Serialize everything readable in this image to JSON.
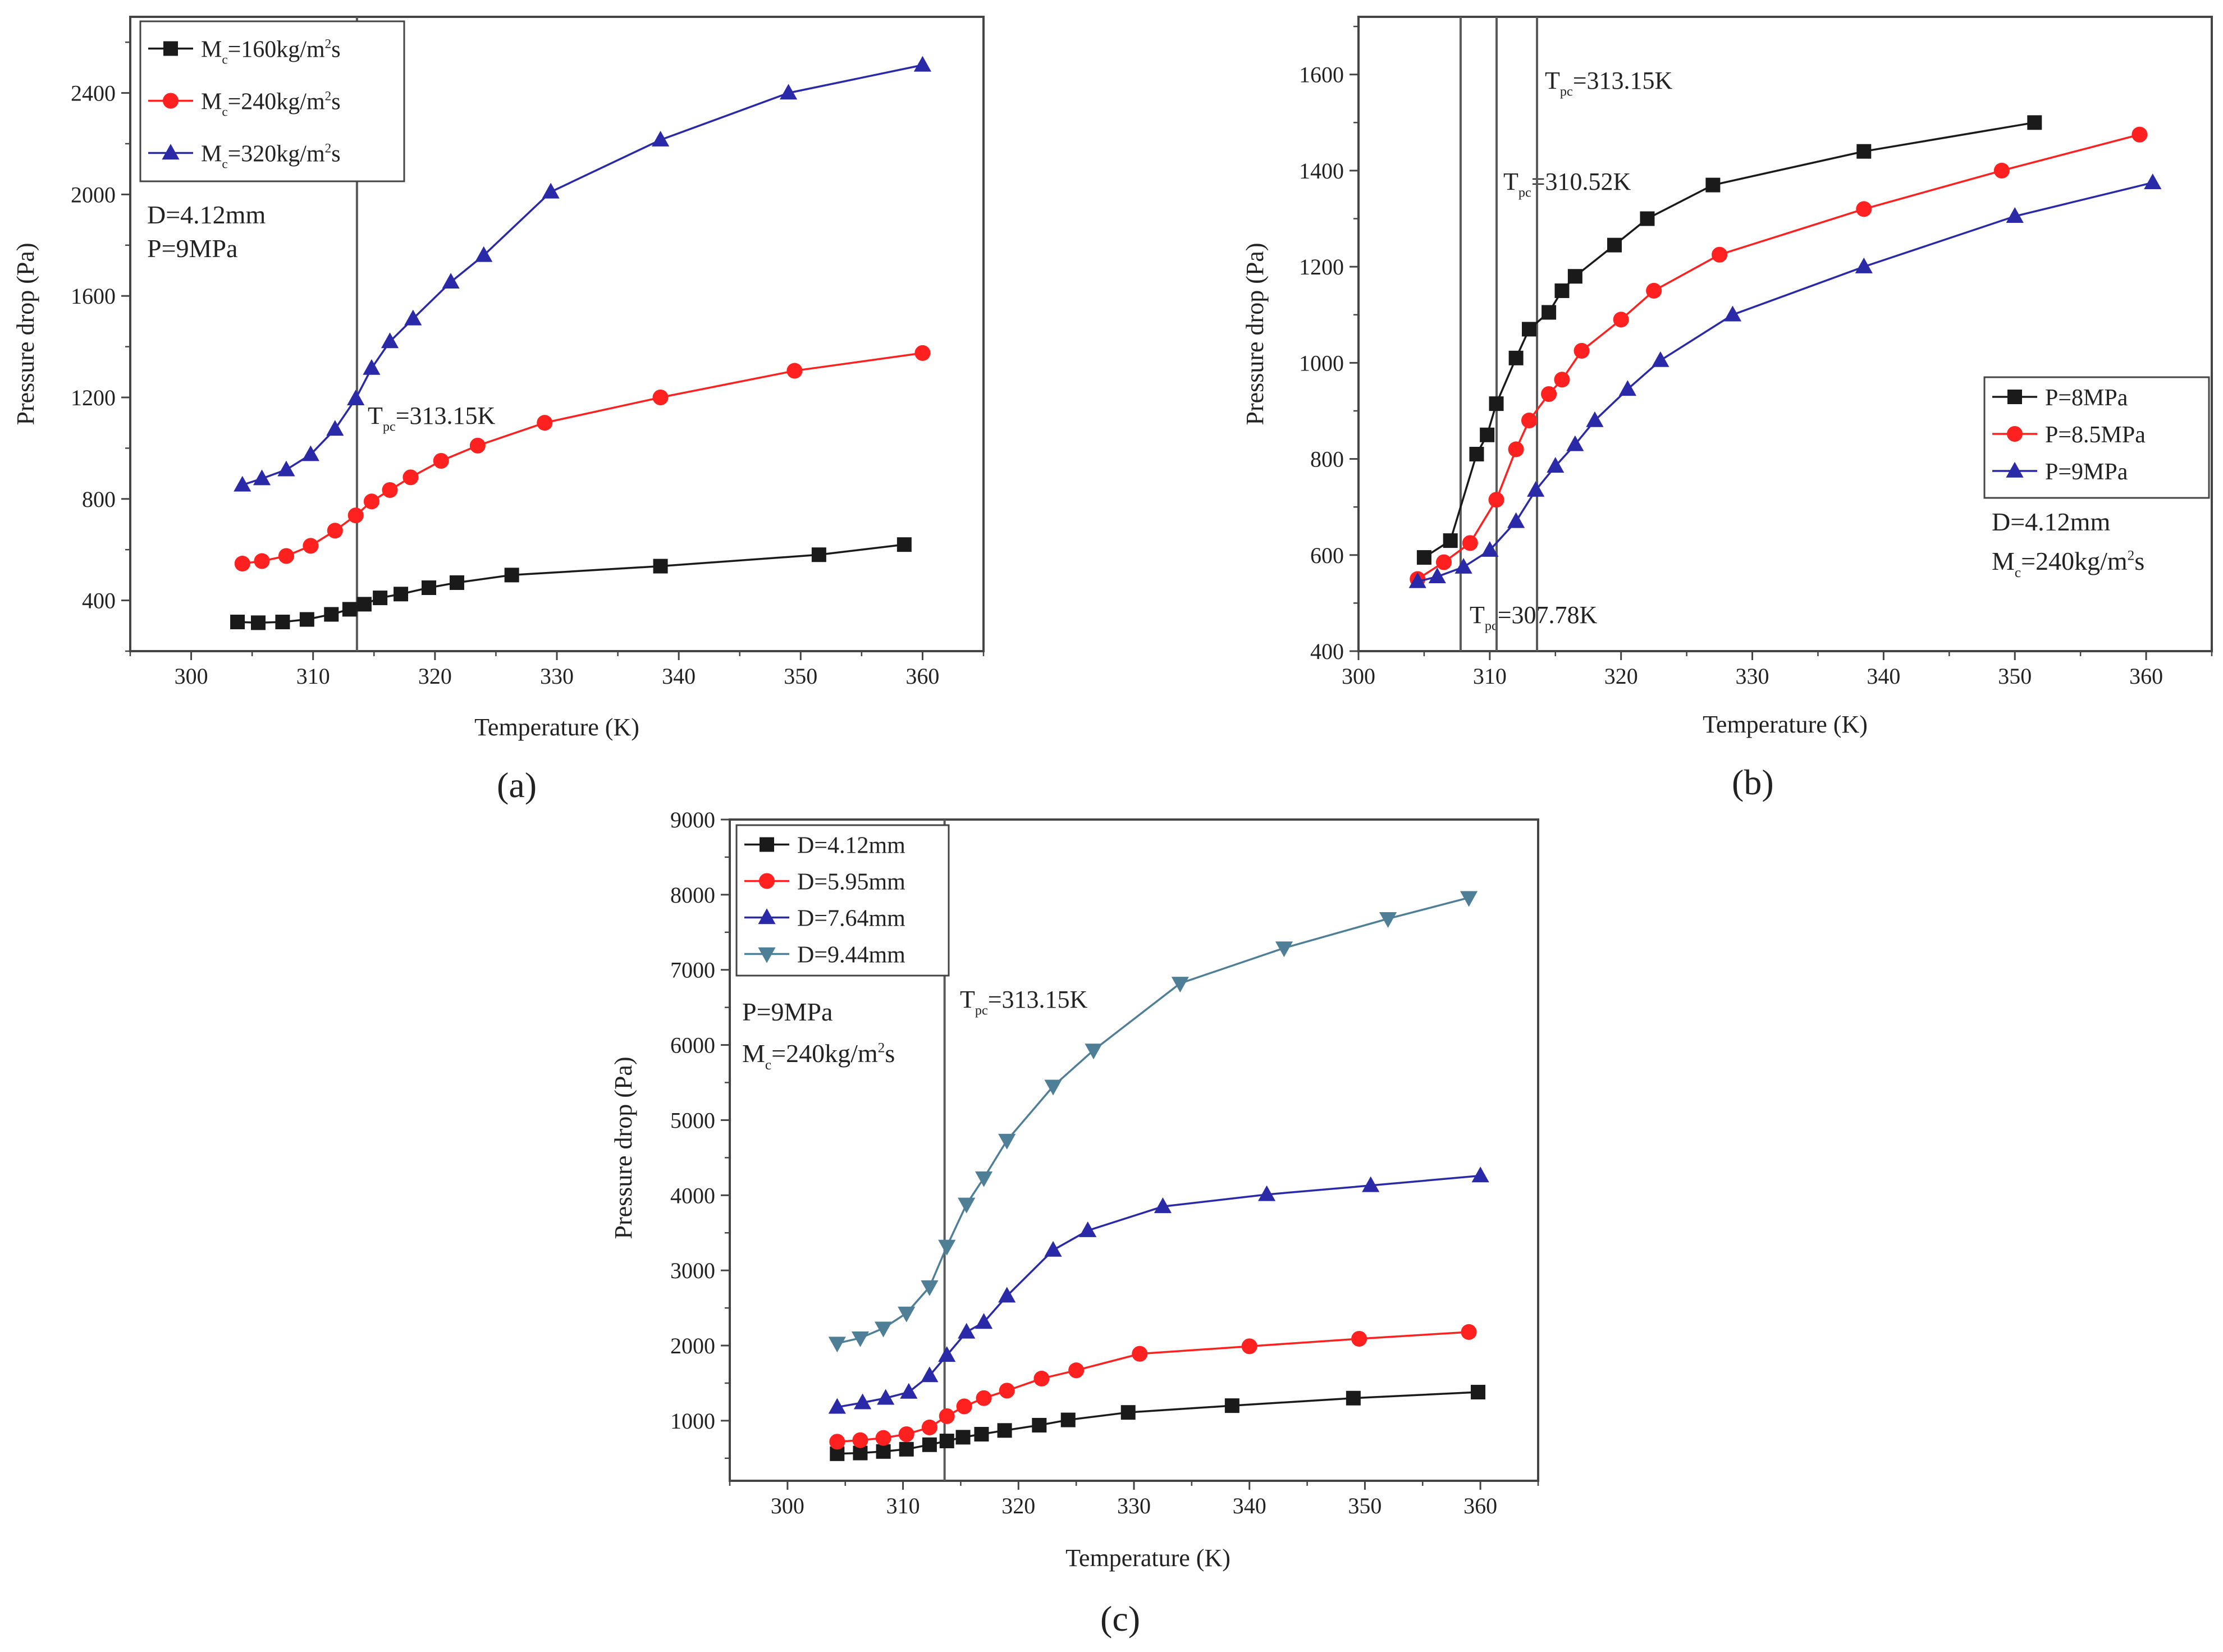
{
  "chart_data": [
    {
      "type": "line",
      "panel_label": "(a)",
      "xlabel": "Temperature (K)",
      "ylabel": "Pressure drop (Pa)",
      "xlim": [
        295,
        365
      ],
      "ylim": [
        200,
        2700
      ],
      "xticks": [
        300,
        310,
        320,
        330,
        340,
        350,
        360
      ],
      "yticks": [
        400,
        800,
        1200,
        1600,
        2000,
        2400
      ],
      "legend_position": "top-left",
      "series": [
        {
          "name": "Mc=160kg/m2s",
          "label_main": "M",
          "label_sub": "c",
          "label_mid": "=160kg/m",
          "label_sup": "2",
          "label_end": "s",
          "color": "#1a1a1a",
          "marker": "square",
          "x": [
            303.8,
            305.5,
            307.5,
            309.5,
            311.5,
            313.0,
            314.2,
            315.5,
            317.2,
            319.5,
            321.8,
            326.3,
            338.5,
            351.5,
            358.5
          ],
          "y": [
            315,
            312,
            315,
            325,
            345,
            365,
            385,
            410,
            425,
            450,
            470,
            500,
            535,
            580,
            620
          ]
        },
        {
          "name": "Mc=240kg/m2s",
          "label_main": "M",
          "label_sub": "c",
          "label_mid": "=240kg/m",
          "label_sup": "2",
          "label_end": "s",
          "color": "#ff2020",
          "marker": "circle",
          "x": [
            304.2,
            305.8,
            307.8,
            309.8,
            311.8,
            313.5,
            314.8,
            316.3,
            318.0,
            320.5,
            323.5,
            329.0,
            338.5,
            349.5,
            360.0
          ],
          "y": [
            545,
            555,
            575,
            615,
            675,
            735,
            790,
            835,
            885,
            950,
            1010,
            1100,
            1200,
            1305,
            1375
          ]
        },
        {
          "name": "Mc=320kg/m2s",
          "label_main": "M",
          "label_sub": "c",
          "label_mid": "=320kg/m",
          "label_sup": "2",
          "label_end": "s",
          "color": "#2a2aa8",
          "marker": "triangle-up",
          "x": [
            304.2,
            305.8,
            307.8,
            309.8,
            311.8,
            313.5,
            314.8,
            316.3,
            318.2,
            321.3,
            324.0,
            329.5,
            338.5,
            349.0,
            360.0
          ],
          "y": [
            855,
            880,
            915,
            975,
            1075,
            1195,
            1315,
            1420,
            1510,
            1655,
            1760,
            2010,
            2215,
            2400,
            2510
          ]
        }
      ],
      "vlines": [
        {
          "x": 313.6,
          "label_main": "T",
          "label_sub": "pc",
          "label_end": "=313.15K"
        }
      ],
      "annotations": [
        "D=4.12mm",
        "P=9MPa"
      ]
    },
    {
      "type": "line",
      "panel_label": "(b)",
      "xlabel": "Temperature (K)",
      "ylabel": "Pressure drop (Pa)",
      "xlim": [
        300,
        365
      ],
      "ylim": [
        400,
        1720
      ],
      "xticks": [
        300,
        310,
        320,
        330,
        340,
        350,
        360
      ],
      "yticks": [
        400,
        600,
        800,
        1000,
        1200,
        1400,
        1600
      ],
      "legend_position": "right",
      "series": [
        {
          "name": "P=8MPa",
          "color": "#1a1a1a",
          "marker": "square",
          "x": [
            305.0,
            307.0,
            309.0,
            309.8,
            310.5,
            312.0,
            313.0,
            314.5,
            315.5,
            316.5,
            319.5,
            322.0,
            327.0,
            338.5,
            351.5
          ],
          "y": [
            595,
            630,
            810,
            850,
            915,
            1010,
            1070,
            1105,
            1150,
            1180,
            1245,
            1300,
            1370,
            1440,
            1500
          ]
        },
        {
          "name": "P=8.5MPa",
          "color": "#ff2020",
          "marker": "circle",
          "x": [
            304.5,
            306.5,
            308.5,
            310.5,
            312.0,
            313.0,
            314.5,
            315.5,
            317.0,
            320.0,
            322.5,
            327.5,
            338.5,
            349.0,
            359.5
          ],
          "y": [
            550,
            585,
            625,
            715,
            820,
            880,
            935,
            965,
            1025,
            1090,
            1150,
            1225,
            1320,
            1400,
            1475
          ]
        },
        {
          "name": "P=9MPa",
          "color": "#2a2aa8",
          "marker": "triangle-up",
          "x": [
            304.5,
            306.0,
            308.0,
            310.0,
            312.0,
            313.5,
            315.0,
            316.5,
            318.0,
            320.5,
            323.0,
            328.5,
            338.5,
            350.0,
            360.5
          ],
          "y": [
            545,
            555,
            575,
            610,
            670,
            735,
            785,
            830,
            880,
            945,
            1005,
            1100,
            1200,
            1305,
            1375
          ]
        }
      ],
      "vlines": [
        {
          "x": 307.78,
          "label_main": "T",
          "label_sub": "pc",
          "label_end": "=307.78K"
        },
        {
          "x": 310.52,
          "label_main": "T",
          "label_sub": "pc",
          "label_end": "=310.52K"
        },
        {
          "x": 313.6,
          "label_main": "T",
          "label_sub": "pc",
          "label_end": "=313.15K"
        }
      ],
      "annotations": [
        {
          "text": "D=4.12mm"
        },
        {
          "label_main": "M",
          "label_sub": "c",
          "label_mid": "=240kg/m",
          "label_sup": "2",
          "label_end": "s"
        }
      ]
    },
    {
      "type": "line",
      "panel_label": "(c)",
      "xlabel": "Temperature (K)",
      "ylabel": "Pressure drop (Pa)",
      "xlim": [
        295,
        365
      ],
      "ylim": [
        200,
        9000
      ],
      "xticks": [
        300,
        310,
        320,
        330,
        340,
        350,
        360
      ],
      "yticks": [
        1000,
        2000,
        3000,
        4000,
        5000,
        6000,
        7000,
        8000,
        9000
      ],
      "legend_position": "top-left",
      "series": [
        {
          "name": "D=4.12mm",
          "color": "#1a1a1a",
          "marker": "square",
          "x": [
            304.3,
            306.3,
            308.3,
            310.3,
            312.3,
            313.8,
            315.2,
            316.8,
            318.8,
            321.8,
            324.3,
            329.5,
            338.5,
            349.0,
            359.8
          ],
          "y": [
            560,
            570,
            590,
            620,
            680,
            730,
            780,
            820,
            870,
            940,
            1010,
            1110,
            1200,
            1300,
            1380
          ]
        },
        {
          "name": "D=5.95mm",
          "color": "#ff2020",
          "marker": "circle",
          "x": [
            304.3,
            306.3,
            308.3,
            310.3,
            312.3,
            313.8,
            315.3,
            317.0,
            319.0,
            322.0,
            325.0,
            330.5,
            340.0,
            349.5,
            359.0
          ],
          "y": [
            720,
            740,
            770,
            820,
            910,
            1060,
            1190,
            1300,
            1400,
            1560,
            1670,
            1890,
            1990,
            2090,
            2180
          ]
        },
        {
          "name": "D=7.64mm",
          "color": "#2a2aa8",
          "marker": "triangle-up",
          "x": [
            304.3,
            306.5,
            308.5,
            310.5,
            312.3,
            313.8,
            315.5,
            317.0,
            319.0,
            323.0,
            326.0,
            332.5,
            341.5,
            350.5,
            360.0
          ],
          "y": [
            1180,
            1240,
            1300,
            1380,
            1600,
            1870,
            2180,
            2310,
            2660,
            3270,
            3530,
            3850,
            4010,
            4130,
            4260
          ]
        },
        {
          "name": "D=9.44mm",
          "color": "#4f7f96",
          "marker": "triangle-down",
          "x": [
            304.3,
            306.3,
            308.3,
            310.3,
            312.3,
            313.8,
            315.5,
            317.0,
            319.0,
            323.0,
            326.5,
            334.0,
            343.0,
            352.0,
            359.0
          ],
          "y": [
            2030,
            2100,
            2230,
            2430,
            2780,
            3320,
            3880,
            4230,
            4730,
            5450,
            5930,
            6820,
            7290,
            7680,
            7960
          ]
        }
      ],
      "vlines": [
        {
          "x": 313.6,
          "label_main": "T",
          "label_sub": "pc",
          "label_end": "=313.15K"
        }
      ],
      "annotations": [
        {
          "text": "P=9MPa"
        },
        {
          "label_main": "M",
          "label_sub": "c",
          "label_mid": "=240kg/m",
          "label_sup": "2",
          "label_end": "s"
        }
      ]
    }
  ]
}
